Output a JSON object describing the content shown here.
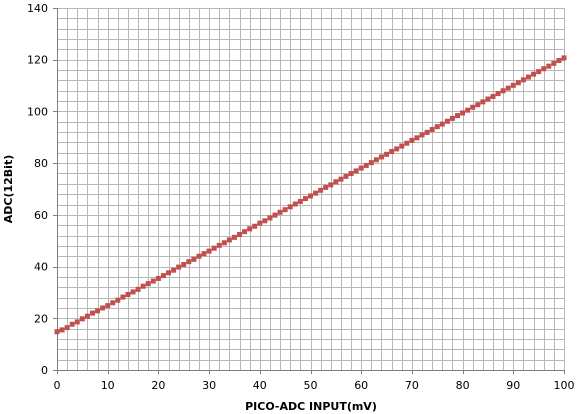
{
  "chart_data": {
    "type": "scatter",
    "title": "",
    "xlabel": "PICO-ADC INPUT(mV)",
    "ylabel": "ADC(12Bit)",
    "xlim": [
      0,
      100
    ],
    "ylim": [
      0,
      140
    ],
    "x_ticks": [
      "0",
      "10",
      "20",
      "30",
      "40",
      "50",
      "60",
      "70",
      "80",
      "90",
      "100"
    ],
    "y_ticks": [
      "0",
      "20",
      "40",
      "60",
      "80",
      "100",
      "120",
      "140"
    ],
    "grid": true,
    "legend": "none",
    "colors": {
      "marker": "#c0504d",
      "grid": "#b7b7b7",
      "axis": "#7f7f7f"
    },
    "series": [
      {
        "x": [
          0,
          1,
          2,
          3,
          4,
          5,
          6,
          7,
          8,
          9,
          10,
          11,
          12,
          13,
          14,
          15,
          16,
          17,
          18,
          19,
          20,
          21,
          22,
          23,
          24,
          25,
          26,
          27,
          28,
          29,
          30,
          31,
          32,
          33,
          34,
          35,
          36,
          37,
          38,
          39,
          40,
          41,
          42,
          43,
          44,
          45,
          46,
          47,
          48,
          49,
          50,
          51,
          52,
          53,
          54,
          55,
          56,
          57,
          58,
          59,
          60,
          61,
          62,
          63,
          64,
          65,
          66,
          67,
          68,
          69,
          70,
          71,
          72,
          73,
          74,
          75,
          76,
          77,
          78,
          79,
          80,
          81,
          82,
          83,
          84,
          85,
          86,
          87,
          88,
          89,
          90,
          91,
          92,
          93,
          94,
          95,
          96,
          97,
          98,
          99,
          100
        ],
        "values": [
          14.8,
          15.5,
          16.4,
          17.7,
          18.6,
          19.8,
          20.8,
          22.0,
          22.9,
          24.0,
          24.9,
          26.0,
          27.0,
          28.2,
          29.2,
          30.2,
          31.2,
          32.4,
          33.4,
          34.4,
          35.4,
          36.5,
          37.6,
          38.6,
          39.8,
          40.8,
          41.9,
          42.8,
          44.0,
          45.0,
          46.0,
          47.1,
          48.2,
          49.2,
          50.3,
          51.3,
          52.4,
          53.5,
          54.6,
          55.6,
          56.8,
          57.7,
          58.8,
          59.9,
          61.0,
          62.0,
          63.1,
          64.2,
          65.2,
          66.3,
          67.3,
          68.4,
          69.5,
          70.6,
          71.6,
          72.8,
          73.8,
          74.9,
          76.0,
          77.0,
          78.1,
          79.1,
          80.2,
          81.3,
          82.4,
          83.4,
          84.5,
          85.5,
          86.6,
          87.7,
          88.8,
          89.8,
          90.9,
          91.9,
          93.0,
          94.1,
          95.1,
          96.2,
          97.3,
          98.4,
          99.4,
          100.5,
          101.6,
          102.6,
          103.7,
          104.8,
          105.8,
          106.9,
          108.0,
          109.0,
          110.1,
          111.1,
          112.2,
          113.3,
          114.4,
          115.4,
          116.5,
          117.5,
          118.6,
          119.7,
          120.7
        ]
      }
    ]
  }
}
